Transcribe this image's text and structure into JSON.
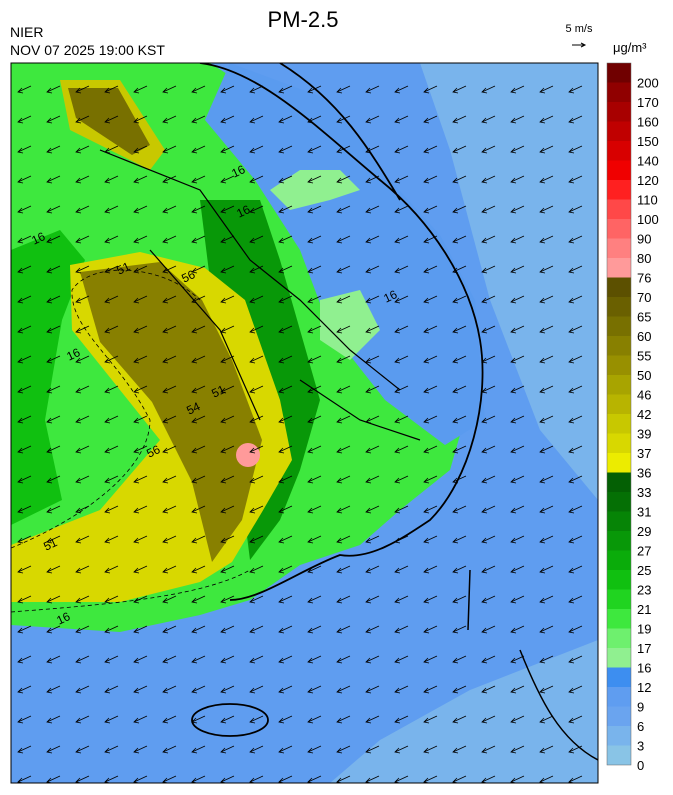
{
  "header": {
    "title": "PM-2.5",
    "agency": "NIER",
    "datetime": "NOV 07 2025 19:00 KST",
    "wind_scale": "5 m/s",
    "unit": "μg/m³"
  },
  "map": {
    "contour_labels": [
      "16",
      "16",
      "16",
      "16",
      "56",
      "51",
      "16",
      "51",
      "54",
      "56",
      "51",
      "16"
    ]
  },
  "colorbar": {
    "levels": [
      0,
      3,
      6,
      9,
      12,
      16,
      17,
      19,
      21,
      23,
      25,
      27,
      29,
      31,
      33,
      36,
      37,
      39,
      42,
      46,
      50,
      55,
      60,
      65,
      70,
      76,
      80,
      90,
      100,
      110,
      120,
      140,
      150,
      160,
      170,
      200
    ],
    "colors": [
      "#89c4e6",
      "#79b4ec",
      "#6aa4ef",
      "#5f9df0",
      "#3d8ef0",
      "#90f090",
      "#6ef06e",
      "#3ee83e",
      "#20d420",
      "#10c010",
      "#0aac0a",
      "#089808",
      "#068406",
      "#057005",
      "#046004",
      "#ecec00",
      "#d8d800",
      "#c8c800",
      "#b8b400",
      "#a8a400",
      "#989000",
      "#888000",
      "#787000",
      "#6a6000",
      "#5c5000",
      "#ff9a9a",
      "#ff8080",
      "#ff6464",
      "#ff4848",
      "#ff2020",
      "#f00000",
      "#d80000",
      "#c00000",
      "#a80000",
      "#900000",
      "#700000"
    ]
  }
}
